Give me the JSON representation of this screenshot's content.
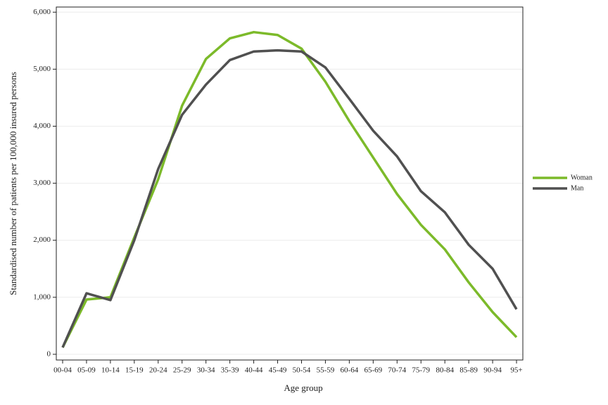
{
  "chart_data": {
    "type": "line",
    "y_label": "Standardised number of patients per 100,000 insured persons",
    "x_label": "Age group",
    "categories": [
      "00-04",
      "05-09",
      "10-14",
      "15-19",
      "20-24",
      "25-29",
      "30-34",
      "35-39",
      "40-44",
      "45-49",
      "50-54",
      "55-59",
      "60-64",
      "65-69",
      "70-74",
      "75-79",
      "80-84",
      "85-89",
      "90-94",
      "95+"
    ],
    "series": [
      {
        "name": "Woman",
        "color": "#7cba2a",
        "values": [
          120,
          960,
          1000,
          2050,
          3070,
          4360,
          5180,
          5540,
          5650,
          5600,
          5360,
          4780,
          4090,
          3450,
          2810,
          2270,
          1840,
          1260,
          740,
          300
        ]
      },
      {
        "name": "Man",
        "color": "#505050",
        "values": [
          120,
          1070,
          950,
          2000,
          3250,
          4200,
          4730,
          5160,
          5310,
          5330,
          5310,
          5030,
          4480,
          3920,
          3470,
          2860,
          2490,
          1920,
          1500,
          790
        ]
      }
    ],
    "ylim": [
      -100,
      6090
    ],
    "yticks": [
      0,
      {
        "value": 1000,
        "label": "1,000"
      },
      {
        "value": 2000,
        "label": "2,000"
      },
      {
        "value": 3000,
        "label": "3,000"
      },
      {
        "value": 4000,
        "label": "4,000"
      },
      {
        "value": 5000,
        "label": "5,000"
      },
      {
        "value": 6000,
        "label": "6,000"
      }
    ],
    "grid": true,
    "legend": "right"
  }
}
